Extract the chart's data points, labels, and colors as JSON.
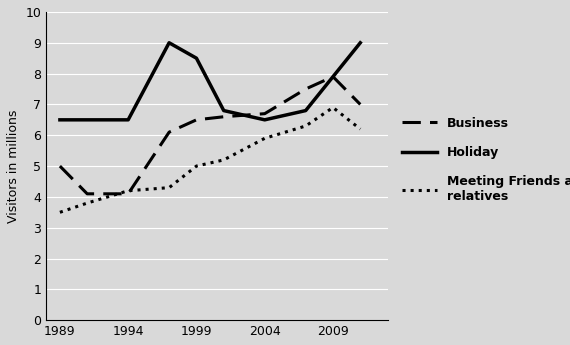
{
  "years": [
    1989,
    1991,
    1994,
    1997,
    1999,
    2001,
    2004,
    2007,
    2009,
    2011
  ],
  "business": [
    5.0,
    4.1,
    4.1,
    6.1,
    6.5,
    6.6,
    6.7,
    7.5,
    7.9,
    7.0
  ],
  "holiday": [
    6.5,
    6.5,
    6.5,
    9.0,
    8.5,
    6.8,
    6.5,
    6.8,
    7.9,
    9.0
  ],
  "friends_years": [
    1989,
    1991,
    1994,
    1997,
    1999,
    2001,
    2004,
    2007,
    2009,
    2011
  ],
  "friends": [
    3.5,
    3.8,
    4.2,
    4.3,
    5.0,
    5.2,
    5.9,
    6.3,
    6.9,
    6.2
  ],
  "ylabel": "Visitors in millions",
  "ylim": [
    0,
    10
  ],
  "yticks": [
    0,
    1,
    2,
    3,
    4,
    5,
    6,
    7,
    8,
    9,
    10
  ],
  "xticks": [
    1989,
    1994,
    1999,
    2004,
    2009
  ],
  "xlim": [
    1988,
    2013
  ],
  "legend_labels": [
    "Business",
    "Holiday",
    "Meeting Friends and\nrelatives"
  ],
  "bg_color": "#d9d9d9",
  "plot_bg": "#d9d9d9",
  "line_color": "#000000",
  "grid_color": "#ffffff"
}
